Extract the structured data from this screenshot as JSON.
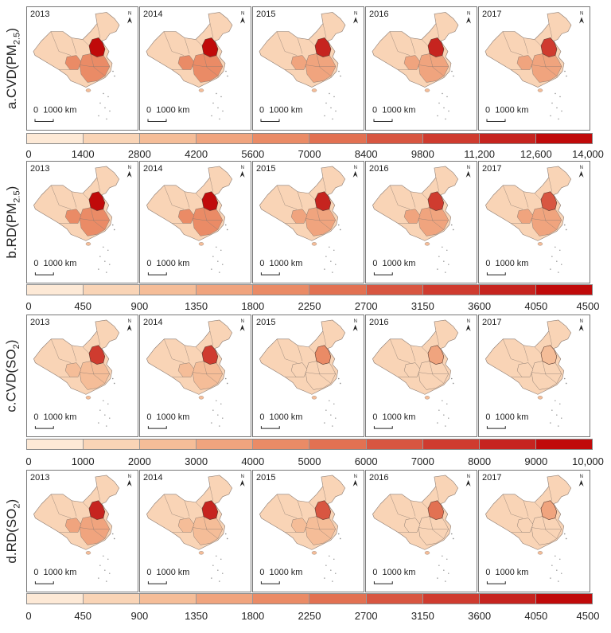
{
  "years": [
    "2013",
    "2014",
    "2015",
    "2016",
    "2017"
  ],
  "scale_label": "0  1000 km",
  "north_label": "N",
  "palette": [
    "#fde9d6",
    "#f9d4b6",
    "#f5bd98",
    "#f0a47e",
    "#ea8b66",
    "#e27152",
    "#d85641",
    "#cf3b2f",
    "#c6241f",
    "#c00a0a"
  ],
  "rows": [
    {
      "label": "a.CVD(PM",
      "sub": "2.5",
      "ticks": [
        "0",
        "1400",
        "2800",
        "4200",
        "5600",
        "7000",
        "8400",
        "9800",
        "11,200",
        "12,600",
        "14,000"
      ],
      "hotspot_class": [
        9,
        9,
        8,
        8,
        7
      ],
      "region_class": [
        4,
        4,
        3,
        3,
        3
      ]
    },
    {
      "label": "b.RD(PM",
      "sub": "2.5",
      "ticks": [
        "0",
        "450",
        "900",
        "1350",
        "1800",
        "2250",
        "2700",
        "3150",
        "3600",
        "4050",
        "4500"
      ],
      "hotspot_class": [
        9,
        9,
        8,
        7,
        6
      ],
      "region_class": [
        4,
        4,
        3,
        3,
        3
      ]
    },
    {
      "label": "c.CVD(SO",
      "sub": "2",
      "ticks": [
        "0",
        "1000",
        "2000",
        "3000",
        "4000",
        "5000",
        "6000",
        "7000",
        "8000",
        "9000",
        "10,000"
      ],
      "hotspot_class": [
        7,
        7,
        4,
        3,
        2
      ],
      "region_class": [
        2,
        2,
        1,
        1,
        1
      ]
    },
    {
      "label": "d.RD(SO",
      "sub": "2",
      "ticks": [
        "0",
        "450",
        "900",
        "1350",
        "1800",
        "2250",
        "2700",
        "3150",
        "3600",
        "4050",
        "4500"
      ],
      "hotspot_class": [
        8,
        8,
        6,
        5,
        3
      ],
      "region_class": [
        3,
        2,
        2,
        1,
        1
      ]
    }
  ]
}
